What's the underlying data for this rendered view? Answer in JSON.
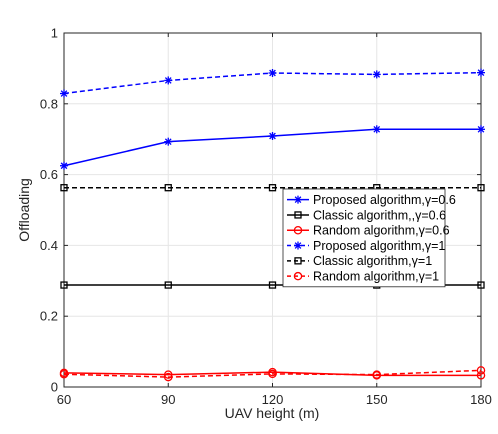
{
  "chart_data": {
    "type": "line",
    "title": "",
    "xlabel": "UAV height (m)",
    "ylabel": "Offloading",
    "x": [
      60,
      90,
      120,
      150,
      180
    ],
    "xlim": [
      60,
      180
    ],
    "ylim": [
      0,
      1
    ],
    "xticks": [
      "60",
      "90",
      "120",
      "150",
      "180"
    ],
    "yticks": [
      "0",
      "0.2",
      "0.4",
      "0.6",
      "0.8",
      "1"
    ],
    "grid": true,
    "legend_position": "right",
    "series": [
      {
        "name": "Proposed algorithm,γ=0.6",
        "values": [
          0.625,
          0.693,
          0.709,
          0.728,
          0.728
        ],
        "color": "#0000ff",
        "dash": "solid",
        "marker": "star"
      },
      {
        "name": "Classic algorithm,,γ=0.6",
        "values": [
          0.288,
          0.288,
          0.288,
          0.288,
          0.288
        ],
        "color": "#000000",
        "dash": "solid",
        "marker": "square"
      },
      {
        "name": "Random algorithm,γ=0.6",
        "values": [
          0.04,
          0.035,
          0.042,
          0.033,
          0.033
        ],
        "color": "#ff0000",
        "dash": "solid",
        "marker": "circle"
      },
      {
        "name": "Proposed algorithm,γ=1",
        "values": [
          0.829,
          0.866,
          0.887,
          0.883,
          0.888
        ],
        "color": "#0000ff",
        "dash": "dashed",
        "marker": "star"
      },
      {
        "name": "Classic algorithm,γ=1",
        "values": [
          0.563,
          0.563,
          0.563,
          0.563,
          0.563
        ],
        "color": "#000000",
        "dash": "dashed",
        "marker": "square"
      },
      {
        "name": "Random algorithm,γ=1",
        "values": [
          0.036,
          0.028,
          0.037,
          0.035,
          0.047
        ],
        "color": "#ff0000",
        "dash": "dashed",
        "marker": "circle"
      }
    ]
  }
}
